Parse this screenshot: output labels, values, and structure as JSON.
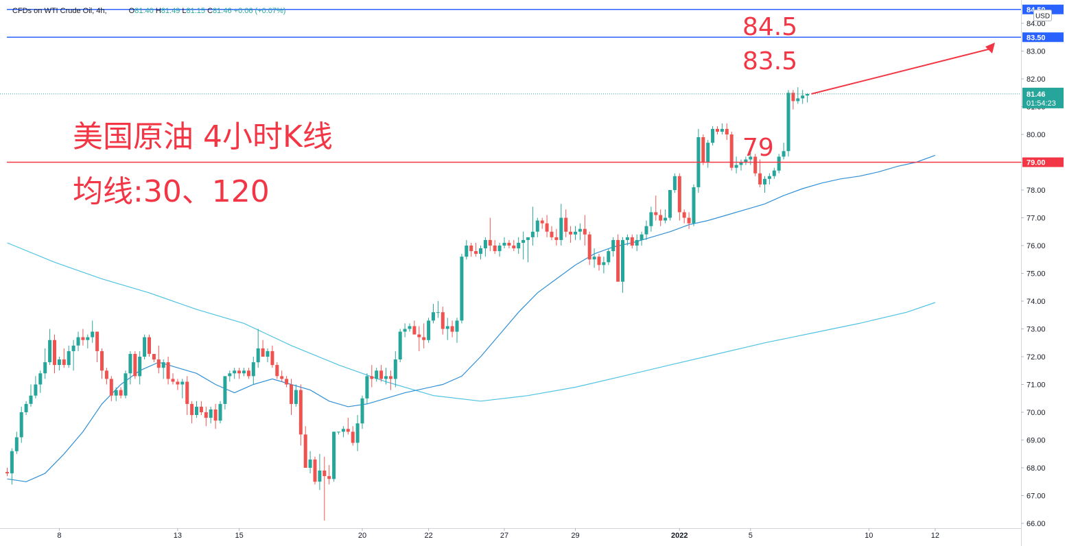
{
  "header": {
    "symbol": "CFDs on WTI Crude Oil, 4h,",
    "o_label": "O",
    "o_value": "81.40",
    "h_label": "H",
    "h_value": "81.49",
    "l_label": "L",
    "l_value": "81.15",
    "c_label": "C",
    "c_value": "81.46",
    "change": "+0.06 (+0.07%)"
  },
  "currency": "USD",
  "annotations": {
    "title": "美国原油 4小时K线",
    "ma": "均线:30、120",
    "level_845": "84.5",
    "level_835": "83.5",
    "level_79": "79"
  },
  "price_tag": {
    "price": "81.46",
    "countdown": "01:54:23"
  },
  "colors": {
    "up": "#26a69a",
    "down": "#ef5350",
    "ma30": "#2f8fd6",
    "ma120": "#4fc3e3",
    "hline_blue": "#2962ff",
    "hline_red": "#f23645",
    "annotation": "#f23645"
  },
  "chart_data": {
    "type": "candlestick",
    "timeframe": "4h",
    "ylim": [
      66.0,
      84.5
    ],
    "y_ticks": [
      "66.00",
      "67.00",
      "68.00",
      "69.00",
      "70.00",
      "71.00",
      "72.00",
      "73.00",
      "74.00",
      "75.00",
      "76.00",
      "77.00",
      "78.00",
      "79.00",
      "80.00",
      "81.00",
      "82.00",
      "83.00",
      "84.00"
    ],
    "x_labels": [
      {
        "label": "8",
        "bar": 11
      },
      {
        "label": "13",
        "bar": 36
      },
      {
        "label": "15",
        "bar": 49
      },
      {
        "label": "20",
        "bar": 75
      },
      {
        "label": "22",
        "bar": 89
      },
      {
        "label": "27",
        "bar": 105
      },
      {
        "label": "29",
        "bar": 120
      },
      {
        "label": "2022",
        "bar": 142
      },
      {
        "label": "5",
        "bar": 157
      },
      {
        "label": "10",
        "bar": 182
      },
      {
        "label": "12",
        "bar": 196
      }
    ],
    "bar_spacing_px": 6.9,
    "candles": [
      [
        67.85,
        68.0,
        67.7,
        67.8
      ],
      [
        67.8,
        68.7,
        67.4,
        68.6
      ],
      [
        68.6,
        69.3,
        68.5,
        69.1
      ],
      [
        69.1,
        70.2,
        68.9,
        70.0
      ],
      [
        70.0,
        70.4,
        69.9,
        70.3
      ],
      [
        70.3,
        71.0,
        70.2,
        70.6
      ],
      [
        70.6,
        71.3,
        70.5,
        71.0
      ],
      [
        71.0,
        71.5,
        70.7,
        71.4
      ],
      [
        71.4,
        72.3,
        71.2,
        71.8
      ],
      [
        71.8,
        73.0,
        71.7,
        72.6
      ],
      [
        72.6,
        72.8,
        71.4,
        71.7
      ],
      [
        71.7,
        72.0,
        71.5,
        71.9
      ],
      [
        71.9,
        72.3,
        71.6,
        71.7
      ],
      [
        71.7,
        72.4,
        71.6,
        72.2
      ],
      [
        72.2,
        72.6,
        71.5,
        72.4
      ],
      [
        72.4,
        72.9,
        72.2,
        72.7
      ],
      [
        72.7,
        73.0,
        72.4,
        72.6
      ],
      [
        72.6,
        72.8,
        72.3,
        72.7
      ],
      [
        72.7,
        73.3,
        72.5,
        72.9
      ],
      [
        72.9,
        72.9,
        71.8,
        72.2
      ],
      [
        72.2,
        72.3,
        71.2,
        71.5
      ],
      [
        71.5,
        71.6,
        71.0,
        71.2
      ],
      [
        71.2,
        71.3,
        70.4,
        70.6
      ],
      [
        70.6,
        70.9,
        70.4,
        70.8
      ],
      [
        70.8,
        70.9,
        70.5,
        70.6
      ],
      [
        70.6,
        71.5,
        70.5,
        71.4
      ],
      [
        71.4,
        72.2,
        71.0,
        72.1
      ],
      [
        72.1,
        72.2,
        71.2,
        71.3
      ],
      [
        71.3,
        72.2,
        71.0,
        72.0
      ],
      [
        72.0,
        72.8,
        71.9,
        72.7
      ],
      [
        72.7,
        72.8,
        72.0,
        72.1
      ],
      [
        72.1,
        72.1,
        71.8,
        71.9
      ],
      [
        71.9,
        72.4,
        71.4,
        71.6
      ],
      [
        71.6,
        71.9,
        71.2,
        71.8
      ],
      [
        71.8,
        72.0,
        71.0,
        71.2
      ],
      [
        71.2,
        71.4,
        71.0,
        71.1
      ],
      [
        71.1,
        71.2,
        70.8,
        71.0
      ],
      [
        71.0,
        71.2,
        70.5,
        71.1
      ],
      [
        71.1,
        71.3,
        69.9,
        70.3
      ],
      [
        70.3,
        70.4,
        69.6,
        69.9
      ],
      [
        69.9,
        70.4,
        69.8,
        70.2
      ],
      [
        70.2,
        70.4,
        69.9,
        70.0
      ],
      [
        70.0,
        70.2,
        69.5,
        69.8
      ],
      [
        69.8,
        70.2,
        69.6,
        70.1
      ],
      [
        70.1,
        70.3,
        69.4,
        69.7
      ],
      [
        69.7,
        70.4,
        69.6,
        70.3
      ],
      [
        70.3,
        71.3,
        70.1,
        71.3
      ],
      [
        71.3,
        71.5,
        71.1,
        71.4
      ],
      [
        71.4,
        71.6,
        71.2,
        71.5
      ],
      [
        71.5,
        71.6,
        71.2,
        71.4
      ],
      [
        71.4,
        71.6,
        71.3,
        71.5
      ],
      [
        71.5,
        71.6,
        71.2,
        71.3
      ],
      [
        71.3,
        72.0,
        71.0,
        71.8
      ],
      [
        71.8,
        73.0,
        71.6,
        72.3
      ],
      [
        72.3,
        72.6,
        72.0,
        72.0
      ],
      [
        72.0,
        72.3,
        71.8,
        72.2
      ],
      [
        72.2,
        72.4,
        71.6,
        71.7
      ],
      [
        71.7,
        71.8,
        71.2,
        71.3
      ],
      [
        71.3,
        71.5,
        71.1,
        71.2
      ],
      [
        71.2,
        71.3,
        70.9,
        71.0
      ],
      [
        71.0,
        71.2,
        69.9,
        70.3
      ],
      [
        70.3,
        71.0,
        70.2,
        70.8
      ],
      [
        70.8,
        71.0,
        68.8,
        69.2
      ],
      [
        69.2,
        69.5,
        68.0,
        68.0
      ],
      [
        68.0,
        68.6,
        67.8,
        68.3
      ],
      [
        68.3,
        68.4,
        67.4,
        67.5
      ],
      [
        67.5,
        68.5,
        67.2,
        67.9
      ],
      [
        67.9,
        68.4,
        66.1,
        67.7
      ],
      [
        67.7,
        68.1,
        67.4,
        67.6
      ],
      [
        67.6,
        69.3,
        67.5,
        69.3
      ],
      [
        69.3,
        69.3,
        69.2,
        69.3
      ],
      [
        69.3,
        69.5,
        69.1,
        69.4
      ],
      [
        69.4,
        69.8,
        69.2,
        69.3
      ],
      [
        69.3,
        69.5,
        68.8,
        68.9
      ],
      [
        68.9,
        69.9,
        68.6,
        69.6
      ],
      [
        69.6,
        70.6,
        69.4,
        70.5
      ],
      [
        70.5,
        71.4,
        70.3,
        71.3
      ],
      [
        71.3,
        71.7,
        70.9,
        71.2
      ],
      [
        71.2,
        71.6,
        71.1,
        71.5
      ],
      [
        71.5,
        71.7,
        71.1,
        71.2
      ],
      [
        71.2,
        71.6,
        71.0,
        71.3
      ],
      [
        71.3,
        71.5,
        70.8,
        71.2
      ],
      [
        71.2,
        72.2,
        70.9,
        71.9
      ],
      [
        71.9,
        73.0,
        71.8,
        72.9
      ],
      [
        72.9,
        73.2,
        72.7,
        73.0
      ],
      [
        73.0,
        73.2,
        72.9,
        73.1
      ],
      [
        73.1,
        73.3,
        72.8,
        72.8
      ],
      [
        72.8,
        73.1,
        72.2,
        72.7
      ],
      [
        72.7,
        73.2,
        72.3,
        72.6
      ],
      [
        72.6,
        73.4,
        72.5,
        73.3
      ],
      [
        73.3,
        73.9,
        73.2,
        73.6
      ],
      [
        73.6,
        74.0,
        73.4,
        73.6
      ],
      [
        73.6,
        73.8,
        72.8,
        73.0
      ],
      [
        73.0,
        73.4,
        72.6,
        73.1
      ],
      [
        73.1,
        73.3,
        72.7,
        72.9
      ],
      [
        72.9,
        73.4,
        72.5,
        73.3
      ],
      [
        73.3,
        75.7,
        73.2,
        75.6
      ],
      [
        75.6,
        76.2,
        75.5,
        76.0
      ],
      [
        76.0,
        76.1,
        75.6,
        75.8
      ],
      [
        75.8,
        76.1,
        75.6,
        75.7
      ],
      [
        75.7,
        76.0,
        75.5,
        75.9
      ],
      [
        75.9,
        76.3,
        75.6,
        76.2
      ],
      [
        76.2,
        77.0,
        75.8,
        76.0
      ],
      [
        76.0,
        76.2,
        75.7,
        75.8
      ],
      [
        75.8,
        76.1,
        75.6,
        76.0
      ],
      [
        76.0,
        76.3,
        75.9,
        76.1
      ],
      [
        76.1,
        76.2,
        75.9,
        76.0
      ],
      [
        76.0,
        76.2,
        75.8,
        75.9
      ],
      [
        75.9,
        76.3,
        75.7,
        76.1
      ],
      [
        76.1,
        76.5,
        75.5,
        76.2
      ],
      [
        76.2,
        76.3,
        75.4,
        76.3
      ],
      [
        76.3,
        77.4,
        76.0,
        76.5
      ],
      [
        76.5,
        77.0,
        76.3,
        76.9
      ],
      [
        76.9,
        77.0,
        76.6,
        76.8
      ],
      [
        76.8,
        77.1,
        76.3,
        76.5
      ],
      [
        76.5,
        76.7,
        76.2,
        76.3
      ],
      [
        76.3,
        76.6,
        76.0,
        76.2
      ],
      [
        76.2,
        77.5,
        76.0,
        77.0
      ],
      [
        77.0,
        77.3,
        76.3,
        76.5
      ],
      [
        76.5,
        76.7,
        76.1,
        76.4
      ],
      [
        76.4,
        76.7,
        76.2,
        76.5
      ],
      [
        76.5,
        76.8,
        76.2,
        76.6
      ],
      [
        76.6,
        77.1,
        76.0,
        76.4
      ],
      [
        76.4,
        76.5,
        75.3,
        75.5
      ],
      [
        75.5,
        75.9,
        75.2,
        75.6
      ],
      [
        75.6,
        75.7,
        75.1,
        75.3
      ],
      [
        75.3,
        75.6,
        75.0,
        75.4
      ],
      [
        75.4,
        75.9,
        75.3,
        75.8
      ],
      [
        75.8,
        76.3,
        75.6,
        76.2
      ],
      [
        76.2,
        76.4,
        74.8,
        74.7
      ],
      [
        74.7,
        76.3,
        74.3,
        76.2
      ],
      [
        76.2,
        76.4,
        76.0,
        76.3
      ],
      [
        76.3,
        76.4,
        75.9,
        76.0
      ],
      [
        76.0,
        76.4,
        75.8,
        76.2
      ],
      [
        76.2,
        76.5,
        76.0,
        76.4
      ],
      [
        76.4,
        76.9,
        76.2,
        76.7
      ],
      [
        76.7,
        77.4,
        76.5,
        77.2
      ],
      [
        77.2,
        77.8,
        76.9,
        77.1
      ],
      [
        77.1,
        77.3,
        76.7,
        76.9
      ],
      [
        76.9,
        77.3,
        76.8,
        77.0
      ],
      [
        77.0,
        78.0,
        76.9,
        78.0
      ],
      [
        78.0,
        78.6,
        77.9,
        78.5
      ],
      [
        78.5,
        78.6,
        76.9,
        77.2
      ],
      [
        77.2,
        77.3,
        76.8,
        77.0
      ],
      [
        77.0,
        77.2,
        76.6,
        76.8
      ],
      [
        76.8,
        78.2,
        76.7,
        78.1
      ],
      [
        78.1,
        80.2,
        77.9,
        79.9
      ],
      [
        79.9,
        80.0,
        78.9,
        79.0
      ],
      [
        79.0,
        79.8,
        78.8,
        79.7
      ],
      [
        79.7,
        80.3,
        79.6,
        80.2
      ],
      [
        80.2,
        80.3,
        80.0,
        80.1
      ],
      [
        80.1,
        80.4,
        80.0,
        80.2
      ],
      [
        80.2,
        80.4,
        79.8,
        80.0
      ],
      [
        80.0,
        80.1,
        78.7,
        78.8
      ],
      [
        78.8,
        79.2,
        78.6,
        78.9
      ],
      [
        78.9,
        79.1,
        78.7,
        79.0
      ],
      [
        79.0,
        79.2,
        78.9,
        79.1
      ],
      [
        79.1,
        79.4,
        78.9,
        79.2
      ],
      [
        79.2,
        79.3,
        78.5,
        78.6
      ],
      [
        78.6,
        79.1,
        78.1,
        78.2
      ],
      [
        78.2,
        78.5,
        77.9,
        78.4
      ],
      [
        78.4,
        78.6,
        78.2,
        78.5
      ],
      [
        78.5,
        78.8,
        78.4,
        78.7
      ],
      [
        78.7,
        79.3,
        78.6,
        79.2
      ],
      [
        79.2,
        79.7,
        79.1,
        79.4
      ],
      [
        79.4,
        81.6,
        79.2,
        81.5
      ],
      [
        81.5,
        81.6,
        80.9,
        81.2
      ],
      [
        81.2,
        81.7,
        81.1,
        81.3
      ],
      [
        81.3,
        81.6,
        81.1,
        81.4
      ],
      [
        81.4,
        81.49,
        81.15,
        81.46
      ]
    ],
    "ma30_points": [
      [
        0,
        67.6
      ],
      [
        4,
        67.5
      ],
      [
        8,
        67.8
      ],
      [
        12,
        68.5
      ],
      [
        16,
        69.3
      ],
      [
        20,
        70.3
      ],
      [
        24,
        71.0
      ],
      [
        28,
        71.5
      ],
      [
        32,
        71.8
      ],
      [
        36,
        71.6
      ],
      [
        40,
        71.4
      ],
      [
        44,
        71.0
      ],
      [
        48,
        70.7
      ],
      [
        52,
        71.0
      ],
      [
        56,
        71.2
      ],
      [
        60,
        71.0
      ],
      [
        64,
        70.8
      ],
      [
        68,
        70.4
      ],
      [
        72,
        70.2
      ],
      [
        76,
        70.3
      ],
      [
        80,
        70.5
      ],
      [
        84,
        70.7
      ],
      [
        88,
        70.85
      ],
      [
        92,
        71.0
      ],
      [
        96,
        71.3
      ],
      [
        100,
        72.0
      ],
      [
        104,
        72.8
      ],
      [
        108,
        73.6
      ],
      [
        112,
        74.3
      ],
      [
        116,
        74.8
      ],
      [
        120,
        75.3
      ],
      [
        124,
        75.7
      ],
      [
        128,
        75.95
      ],
      [
        132,
        76.1
      ],
      [
        136,
        76.3
      ],
      [
        140,
        76.5
      ],
      [
        144,
        76.75
      ],
      [
        148,
        76.9
      ],
      [
        152,
        77.1
      ],
      [
        156,
        77.3
      ],
      [
        160,
        77.5
      ],
      [
        164,
        77.8
      ],
      [
        168,
        78.05
      ],
      [
        172,
        78.25
      ],
      [
        176,
        78.4
      ],
      [
        180,
        78.5
      ],
      [
        184,
        78.65
      ],
      [
        188,
        78.85
      ],
      [
        192,
        79.0
      ],
      [
        196,
        79.25
      ]
    ],
    "ma120_points": [
      [
        0,
        76.1
      ],
      [
        10,
        75.4
      ],
      [
        20,
        74.8
      ],
      [
        30,
        74.3
      ],
      [
        40,
        73.7
      ],
      [
        50,
        73.2
      ],
      [
        60,
        72.4
      ],
      [
        70,
        71.7
      ],
      [
        80,
        71.1
      ],
      [
        90,
        70.6
      ],
      [
        100,
        70.4
      ],
      [
        110,
        70.6
      ],
      [
        120,
        70.9
      ],
      [
        130,
        71.3
      ],
      [
        140,
        71.7
      ],
      [
        150,
        72.1
      ],
      [
        160,
        72.5
      ],
      [
        170,
        72.85
      ],
      [
        180,
        73.2
      ],
      [
        190,
        73.6
      ],
      [
        196,
        73.95
      ]
    ],
    "hlines": [
      {
        "price": 84.5,
        "label": "84.50",
        "color": "blue"
      },
      {
        "price": 83.5,
        "label": "83.50",
        "color": "blue"
      },
      {
        "price": 79.0,
        "label": "79.00",
        "color": "red"
      }
    ],
    "last_price": 81.46
  }
}
